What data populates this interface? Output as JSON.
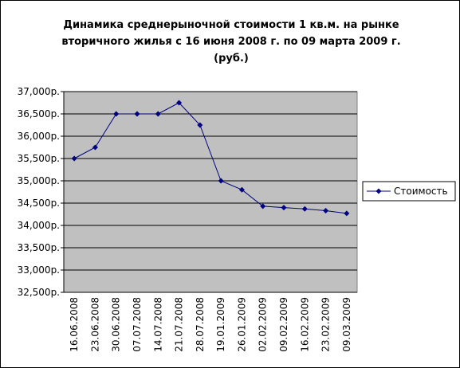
{
  "chart_data": {
    "type": "line",
    "title": [
      "Динамика среднерыночной стоимости 1 кв.м. на рынке",
      "вторичного жилья с 16 июня 2008 г. по 09 марта 2009 г.",
      "(руб.)"
    ],
    "categories": [
      "16.06.2008",
      "23.06.2008",
      "30.06.2008",
      "07.07.2008",
      "14.07.2008",
      "21.07.2008",
      "28.07.2008",
      "19.01.2009",
      "26.01.2009",
      "02.02.2009",
      "09.02.2009",
      "16.02.2009",
      "23.02.2009",
      "09.03.2009"
    ],
    "series": [
      {
        "name": "Стоимость",
        "color": "#000080",
        "values": [
          35500,
          35750,
          36500,
          36500,
          36500,
          36750,
          36250,
          35000,
          34800,
          34430,
          34400,
          34370,
          34330,
          34270
        ]
      }
    ],
    "ylim": [
      32500,
      37000
    ],
    "yticks": [
      {
        "value": 32500,
        "label": "32,500р."
      },
      {
        "value": 33000,
        "label": "33,000р."
      },
      {
        "value": 33500,
        "label": "33,500р."
      },
      {
        "value": 34000,
        "label": "34,000р."
      },
      {
        "value": 34500,
        "label": "34,500р."
      },
      {
        "value": 35000,
        "label": "35,000р."
      },
      {
        "value": 35500,
        "label": "35,500р."
      },
      {
        "value": 36000,
        "label": "36,000р."
      },
      {
        "value": 36500,
        "label": "36,500р."
      },
      {
        "value": 37000,
        "label": "37,000р."
      }
    ],
    "grid": true,
    "plot_background": "#c0c0c0",
    "legend": "right"
  }
}
